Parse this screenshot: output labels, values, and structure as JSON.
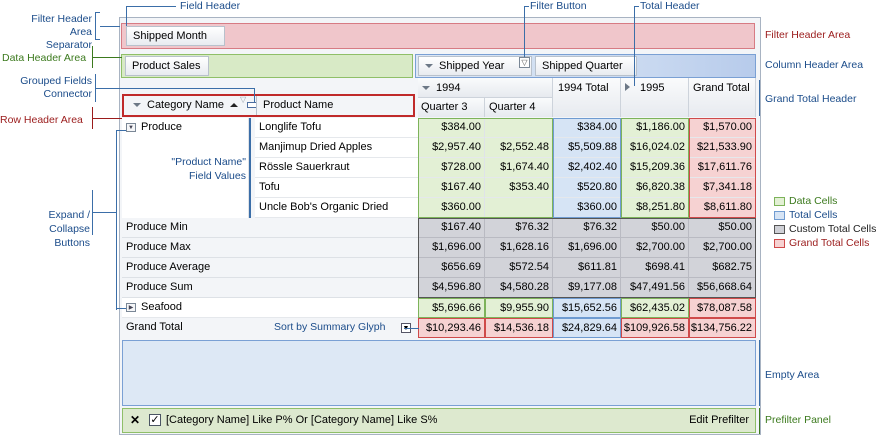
{
  "callouts": {
    "field_header": "Field Header",
    "filter_button": "Filter Button",
    "total_header": "Total Header",
    "filter_header_area_separator_1": "Filter Header Area",
    "filter_header_area_separator_2": "Separator",
    "filter_header_area": "Filter Header Area",
    "data_header_area": "Data Header Area",
    "column_header_area": "Column Header Area",
    "grouped_fields_1": "Grouped Fields",
    "grouped_fields_2": "Connector",
    "row_header_area": "Row Header Area",
    "grand_total_header": "Grand Total Header",
    "product_name_values_1": "\"Product Name\"",
    "product_name_values_2": "Field Values",
    "expand_collapse_1": "Expand / Collapse",
    "expand_collapse_2": "Buttons",
    "sort_by_summary": "Sort by Summary Glyph",
    "empty_area": "Empty Area",
    "prefilter_panel": "Prefilter Panel"
  },
  "legend": [
    {
      "label": "Data Cells",
      "color": "#e3f0d5",
      "border": "#7db35a"
    },
    {
      "label": "Total Cells",
      "color": "#d6e4f5",
      "border": "#6f9bd1"
    },
    {
      "label": "Custom Total Cells",
      "color": "#cfd0d6",
      "border": "#555"
    },
    {
      "label": "Grand Total Cells",
      "color": "#f6d2d2",
      "border": "#cf4a4a"
    }
  ],
  "filter_area": {
    "field": "Shipped Month"
  },
  "data_area": {
    "field": "Product Sales"
  },
  "column_fields": [
    {
      "label": "Shipped Year"
    },
    {
      "label": "Shipped Quarter"
    }
  ],
  "row_fields": [
    {
      "label": "Category Name"
    },
    {
      "label": "Product Name"
    }
  ],
  "column_headers": {
    "year": "1994",
    "q3": "Quarter 3",
    "q4": "Quarter 4",
    "year_total": "1994 Total",
    "year2": "1995",
    "grand_total": "Grand Total"
  },
  "produce": {
    "label": "Produce",
    "products": [
      {
        "name": "Longlife Tofu",
        "q3": "$384.00",
        "q4": "",
        "total": "$384.00",
        "y1995": "$1,186.00",
        "grand": "$1,570.00"
      },
      {
        "name": "Manjimup Dried Apples",
        "q3": "$2,957.40",
        "q4": "$2,552.48",
        "total": "$5,509.88",
        "y1995": "$16,024.02",
        "grand": "$21,533.90"
      },
      {
        "name": "Rössle Sauerkraut",
        "q3": "$728.00",
        "q4": "$1,674.40",
        "total": "$2,402.40",
        "y1995": "$15,209.36",
        "grand": "$17,611.76"
      },
      {
        "name": "Tofu",
        "q3": "$167.40",
        "q4": "$353.40",
        "total": "$520.80",
        "y1995": "$6,820.38",
        "grand": "$7,341.18"
      },
      {
        "name": "Uncle Bob's Organic Dried Pears",
        "q3": "$360.00",
        "q4": "",
        "total": "$360.00",
        "y1995": "$8,251.80",
        "grand": "$8,611.80"
      }
    ],
    "totals": [
      {
        "label": "Produce Min",
        "q3": "$167.40",
        "q4": "$76.32",
        "total": "$76.32",
        "y1995": "$50.00",
        "grand": "$50.00"
      },
      {
        "label": "Produce Max",
        "q3": "$1,696.00",
        "q4": "$1,628.16",
        "total": "$1,696.00",
        "y1995": "$2,700.00",
        "grand": "$2,700.00"
      },
      {
        "label": "Produce Average",
        "q3": "$656.69",
        "q4": "$572.54",
        "total": "$611.81",
        "y1995": "$698.41",
        "grand": "$682.75"
      },
      {
        "label": "Produce Sum",
        "q3": "$4,596.80",
        "q4": "$4,580.28",
        "total": "$9,177.08",
        "y1995": "$47,491.56",
        "grand": "$56,668.64"
      }
    ]
  },
  "seafood": {
    "label": "Seafood",
    "q3": "$5,696.66",
    "q4": "$9,955.90",
    "total": "$15,652.56",
    "y1995": "$62,435.02",
    "grand": "$78,087.58"
  },
  "grand_total_row": {
    "label": "Grand Total",
    "q3": "$10,293.46",
    "q4": "$14,536.18",
    "total": "$24,829.64",
    "y1995": "$109,926.58",
    "grand": "$134,756.22"
  },
  "prefilter": {
    "text": "[Category Name] Like P% Or [Category Name] Like S%",
    "edit": "Edit Prefilter"
  }
}
